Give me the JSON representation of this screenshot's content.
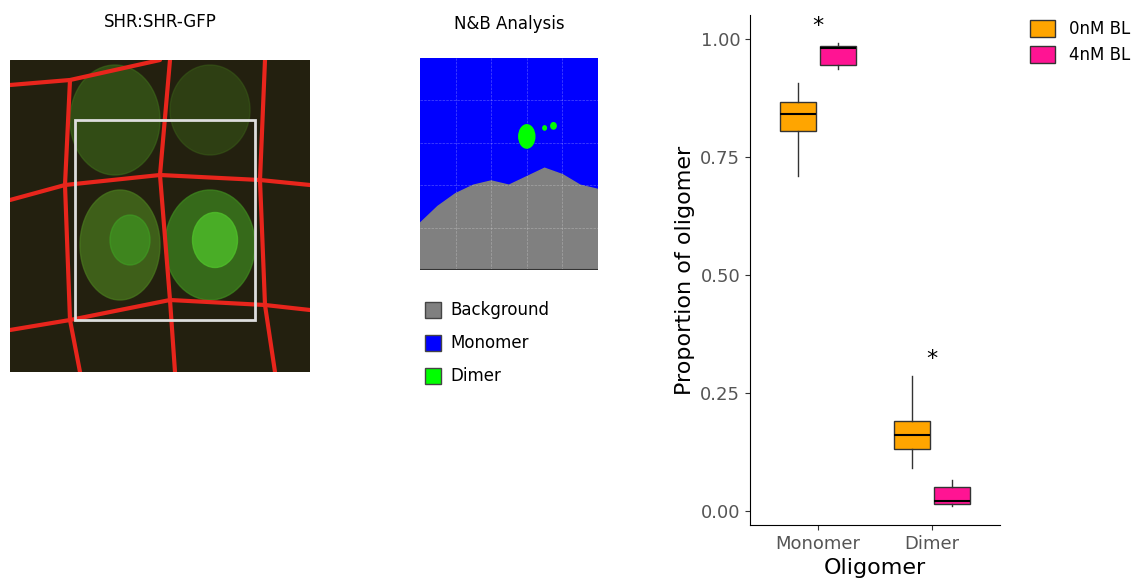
{
  "chart_data": {
    "type": "box",
    "xlabel": "Oligomer",
    "ylabel": "Proportion of oligomer",
    "categories": [
      "Monomer",
      "Dimer"
    ],
    "series": [
      {
        "name": "0nM BL",
        "color": "#FFA500",
        "stats": [
          {
            "whislo": 0.71,
            "q1": 0.805,
            "med": 0.84,
            "q3": 0.865,
            "whishi": 0.905
          },
          {
            "whislo": 0.09,
            "q1": 0.13,
            "med": 0.16,
            "q3": 0.19,
            "whishi": 0.285
          }
        ]
      },
      {
        "name": "4nM BL",
        "color": "#FF1493",
        "stats": [
          {
            "whislo": 0.935,
            "q1": 0.945,
            "med": 0.98,
            "q3": 0.985,
            "whishi": 0.99
          },
          {
            "whislo": 0.01,
            "q1": 0.015,
            "med": 0.02,
            "q3": 0.05,
            "whishi": 0.065
          }
        ]
      }
    ],
    "ylim": [
      -0.03,
      1.05
    ],
    "yticks": [
      {
        "value": 0,
        "label": "0.00"
      },
      {
        "value": 0.25,
        "label": "0.25"
      },
      {
        "value": 0.5,
        "label": "0.50"
      },
      {
        "value": 0.75,
        "label": "0.75"
      },
      {
        "value": 1,
        "label": "1.00"
      }
    ],
    "annotations": [
      {
        "text": "*",
        "category": "Monomer"
      },
      {
        "text": "*",
        "category": "Dimer"
      }
    ],
    "legend": "upper right"
  },
  "panels": [
    {
      "title": "SHR:SHR-GFP"
    },
    {
      "title": "N&B Analysis",
      "legend": [
        {
          "name": "Background",
          "color": "#808080"
        },
        {
          "name": "Monomer",
          "color": "#0000FF"
        },
        {
          "name": "Dimer",
          "color": "#00FF00"
        }
      ]
    }
  ]
}
